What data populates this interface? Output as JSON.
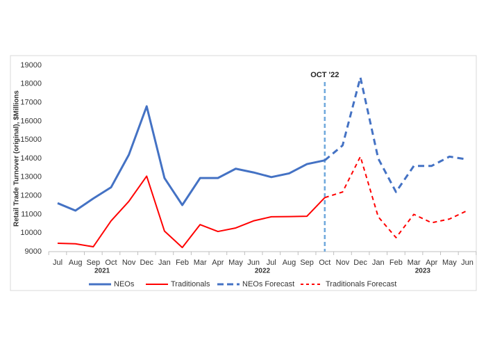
{
  "chart_data": {
    "type": "line",
    "y_label": "Retail Trade Turnover (original), $Millions",
    "categories": [
      "Jul",
      "Aug",
      "Sep",
      "Oct",
      "Nov",
      "Dec",
      "Jan",
      "Feb",
      "Mar",
      "Apr",
      "May",
      "Jun",
      "Jul",
      "Aug",
      "Sep",
      "Oct",
      "Nov",
      "Dec",
      "Jan",
      "Feb",
      "Mar",
      "Apr",
      "May",
      "Jun"
    ],
    "groups": [
      {
        "label": "2021",
        "start": 0,
        "end": 5
      },
      {
        "label": "2022",
        "start": 6,
        "end": 17
      },
      {
        "label": "2023",
        "start": 18,
        "end": 23
      }
    ],
    "series": [
      {
        "name": "NEOs",
        "color": "#4472c4",
        "dashed": false,
        "values": [
          11600,
          11200,
          11850,
          12450,
          14200,
          16800,
          12950,
          11500,
          12950,
          12950,
          13450,
          13250,
          13000,
          13200,
          13700,
          13900,
          null,
          null,
          null,
          null,
          null,
          null,
          null,
          null
        ]
      },
      {
        "name": "Traditionals",
        "color": "#ff0000",
        "dashed": false,
        "values": [
          9450,
          9420,
          9260,
          10650,
          11700,
          13050,
          10100,
          9220,
          10450,
          10080,
          10270,
          10650,
          10870,
          10880,
          10900,
          11900,
          null,
          null,
          null,
          null,
          null,
          null,
          null,
          null
        ]
      },
      {
        "name": "NEOs Forecast",
        "color": "#4472c4",
        "dashed": true,
        "values": [
          null,
          null,
          null,
          null,
          null,
          null,
          null,
          null,
          null,
          null,
          null,
          null,
          null,
          null,
          null,
          13900,
          14700,
          18350,
          14000,
          12200,
          13600,
          13600,
          14100,
          13950
        ]
      },
      {
        "name": "Traditionals Forecast",
        "color": "#ff0000",
        "dashed": true,
        "values": [
          null,
          null,
          null,
          null,
          null,
          null,
          null,
          null,
          null,
          null,
          null,
          null,
          null,
          null,
          null,
          11900,
          12200,
          14100,
          10870,
          9750,
          11000,
          10550,
          10750,
          11200
        ]
      }
    ],
    "ylim": [
      9000,
      19000
    ],
    "yticks": [
      9000,
      10000,
      11000,
      12000,
      13000,
      14000,
      15000,
      16000,
      17000,
      18000,
      19000
    ],
    "annotations": [
      {
        "text": "OCT '22",
        "category_index": 15,
        "color": "#6fa8dc"
      }
    ],
    "legend": "bottom"
  }
}
